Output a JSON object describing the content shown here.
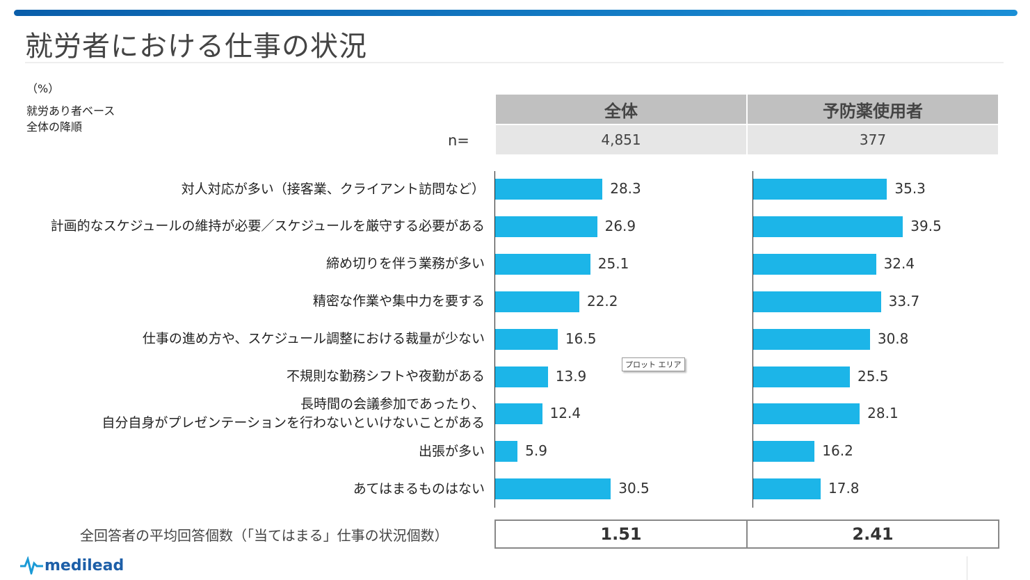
{
  "title": "就労者における仕事の状況",
  "notes": {
    "unit": "（%）",
    "base": "就労あり者ベース",
    "sort": "全体の降順"
  },
  "n_label": "n=",
  "chart_data": {
    "type": "bar",
    "orientation": "horizontal",
    "xlim": [
      0,
      40
    ],
    "categories": [
      "対人対応が多い（接客業、クライアント訪問など）",
      "計画的なスケジュールの維持が必要／スケジュールを厳守する必要がある",
      "締め切りを伴う業務が多い",
      "精密な作業や集中力を要する",
      "仕事の進め方や、スケジュール調整における裁量が少ない",
      "不規則な勤務シフトや夜勤がある",
      "長時間の会議参加であったり、\n自分自身がプレゼンテーションを行わないといけないことがある",
      "出張が多い",
      "あてはまるものはない"
    ],
    "series": [
      {
        "name": "全体",
        "n": "4,851",
        "values": [
          28.3,
          26.9,
          25.1,
          22.2,
          16.5,
          13.9,
          12.4,
          5.9,
          30.5
        ],
        "average": "1.51"
      },
      {
        "name": "予防薬使用者",
        "n": "377",
        "values": [
          35.3,
          39.5,
          32.4,
          33.7,
          30.8,
          25.5,
          28.1,
          16.2,
          17.8
        ],
        "average": "2.41"
      }
    ],
    "bar_color": "#1cb5e8",
    "average_label": "全回答者の平均回答個数（「当てはまる」仕事の状況個数）"
  },
  "tooltip": "プロット エリア",
  "logo": "medilead"
}
